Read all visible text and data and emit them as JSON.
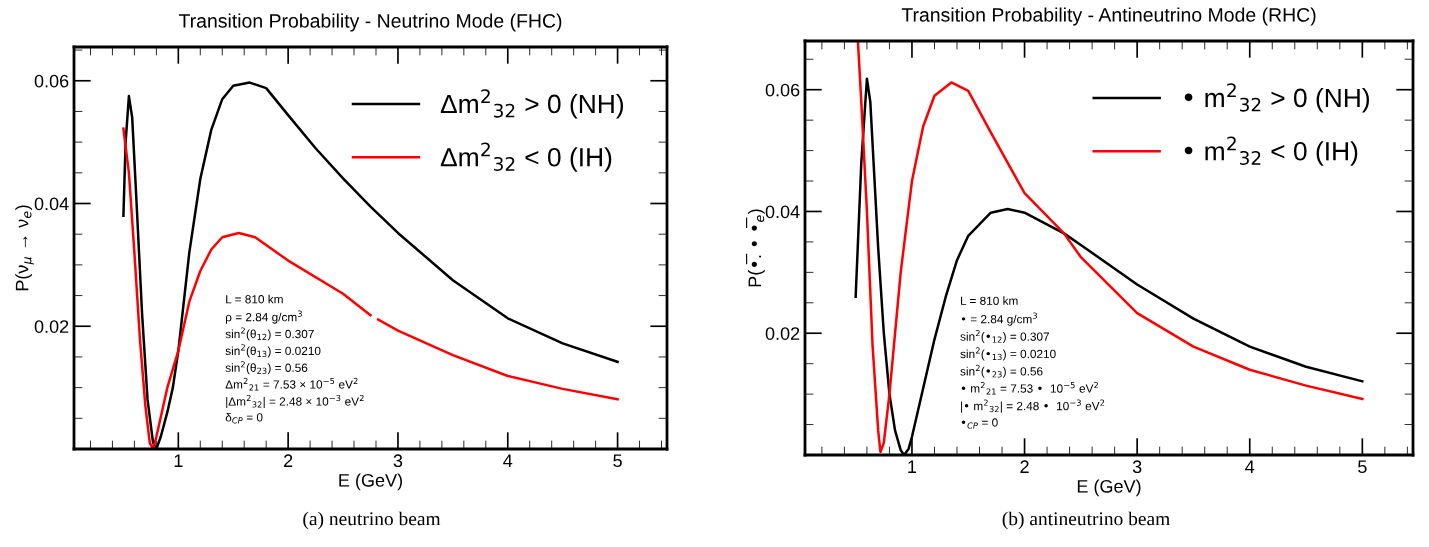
{
  "chart_data": [
    {
      "type": "line",
      "title": "Transition Probability - Neutrino Mode (FHC)",
      "xlabel": "E (GeV)",
      "ylabel": "P(ν$_{μ}$ → ν$_{e}$)",
      "xlim": [
        0.05,
        5.45
      ],
      "ylim": [
        0,
        0.0655
      ],
      "xticks": [
        1,
        2,
        3,
        4,
        5
      ],
      "yticks": [
        0.02,
        0.04,
        0.06
      ],
      "legend": "top right",
      "grid": false,
      "marker": "none",
      "line_style": "solid",
      "series": [
        {
          "name": "Δm$^{2}$$_{32}$ > 0 (NH)",
          "color": "#000000",
          "x": [
            0.5,
            0.52,
            0.55,
            0.58,
            0.62,
            0.67,
            0.72,
            0.77,
            0.8,
            0.84,
            0.9,
            0.95,
            1.0,
            1.1,
            1.2,
            1.3,
            1.4,
            1.5,
            1.65,
            1.8,
            2.0,
            2.25,
            2.5,
            2.75,
            3.0,
            3.5,
            4.0,
            4.5,
            5.0
          ],
          "values": [
            0.038,
            0.05,
            0.0575,
            0.054,
            0.04,
            0.022,
            0.008,
            0.001,
            0.0,
            0.002,
            0.006,
            0.01,
            0.016,
            0.032,
            0.044,
            0.052,
            0.057,
            0.0592,
            0.0597,
            0.0588,
            0.0544,
            0.049,
            0.0441,
            0.0395,
            0.0352,
            0.0275,
            0.0213,
            0.0172,
            0.0142
          ]
        },
        {
          "name": "Δm$^{2}$$_{32}$ < 0 (IH)",
          "color": "#ff0000",
          "x": [
            0.5,
            0.55,
            0.6,
            0.65,
            0.7,
            0.74,
            0.77,
            0.8,
            0.85,
            0.9,
            0.95,
            1.0,
            1.1,
            1.2,
            1.3,
            1.4,
            1.55,
            1.7,
            2.0,
            2.5,
            2.75,
            2.79,
            2.82,
            3.0,
            3.5,
            4.0,
            4.5,
            5.0
          ],
          "values": [
            0.0522,
            0.045,
            0.032,
            0.018,
            0.007,
            0.001,
            0.0,
            0.002,
            0.006,
            0.01,
            0.013,
            0.016,
            0.024,
            0.029,
            0.0325,
            0.0345,
            0.0352,
            0.0345,
            0.0307,
            0.0253,
            0.0218,
            null,
            0.0211,
            0.0193,
            0.0153,
            0.0119,
            0.0098,
            0.0081
          ]
        }
      ],
      "annotations": [
        "L = 810 km",
        "ρ = 2.84 g/cm$^{3}$",
        "sin$^{2}$(θ$_{12}$) = 0.307",
        "sin$^{2}$(θ$_{13}$) = 0.0210",
        "sin$^{2}$(θ$_{23}$) = 0.56",
        "Δm$^{2}$$_{21}$ = 7.53 × 10$^{−5}$ eV$^{2}$",
        "|Δm$^{2}$$_{32}$| = 2.48 × 10$^{−3}$ eV$^{2}$",
        "δ$_{CP}$ = 0",
        "(a) neutrino beam"
      ]
    },
    {
      "type": "line",
      "title": "Transition Probability - Antineutrino Mode (RHC)",
      "xlabel": "E (GeV)",
      "ylabel": "P(•̅. • •̅$_{e}$)",
      "xlim": [
        0.05,
        5.45
      ],
      "ylim": [
        0,
        0.068
      ],
      "xticks": [
        1,
        2,
        3,
        4,
        5
      ],
      "yticks": [
        0.02,
        0.04,
        0.06
      ],
      "legend": "top right",
      "grid": false,
      "marker": "none",
      "line_style": "solid",
      "series": [
        {
          "name": "• m$^{2}$$_{32}$ > 0 (NH)",
          "color": "#000000",
          "x": [
            0.5,
            0.55,
            0.6,
            0.63,
            0.7,
            0.75,
            0.8,
            0.85,
            0.9,
            0.93,
            0.97,
            1.0,
            1.1,
            1.2,
            1.3,
            1.4,
            1.5,
            1.7,
            1.85,
            2.0,
            2.35,
            2.5,
            3.0,
            3.5,
            4.0,
            4.5,
            5.0
          ],
          "values": [
            0.026,
            0.048,
            0.0618,
            0.058,
            0.034,
            0.02,
            0.01,
            0.004,
            0.0008,
            0.0,
            0.001,
            0.003,
            0.011,
            0.019,
            0.026,
            0.032,
            0.036,
            0.0398,
            0.0404,
            0.0398,
            0.0364,
            0.0345,
            0.028,
            0.0224,
            0.0178,
            0.0145,
            0.0121
          ]
        },
        {
          "name": "• m$^{2}$$_{32}$ < 0 (IH)",
          "color": "#ff0000",
          "x": [
            0.52,
            0.55,
            0.6,
            0.65,
            0.7,
            0.72,
            0.75,
            0.8,
            0.85,
            0.9,
            1.0,
            1.1,
            1.2,
            1.35,
            1.5,
            1.7,
            2.0,
            2.35,
            2.5,
            3.0,
            3.5,
            4.0,
            4.5,
            5.0
          ],
          "values": [
            0.068,
            0.058,
            0.04,
            0.018,
            0.004,
            0.0005,
            0.002,
            0.01,
            0.02,
            0.03,
            0.045,
            0.054,
            0.059,
            0.0612,
            0.0598,
            0.053,
            0.043,
            0.0364,
            0.0325,
            0.0233,
            0.0178,
            0.014,
            0.0114,
            0.0092
          ]
        }
      ],
      "annotations": [
        "L = 810 km",
        "• = 2.84 g/cm$^{3}$",
        "sin$^{2}$(•$_{12}$) = 0.307",
        "sin$^{2}$(•$_{13}$) = 0.0210",
        "sin$^{2}$(•$_{23}$) = 0.56",
        "• m$^{2}$$_{21}$ = 7.53 •  10$^{−5}$ eV$^{2}$",
        "|• m$^{2}$$_{32}$| = 2.48 •  10$^{−3}$ eV$^{2}$",
        "•$_{CP}$ = 0",
        "(b) antineutrino beam"
      ]
    }
  ]
}
